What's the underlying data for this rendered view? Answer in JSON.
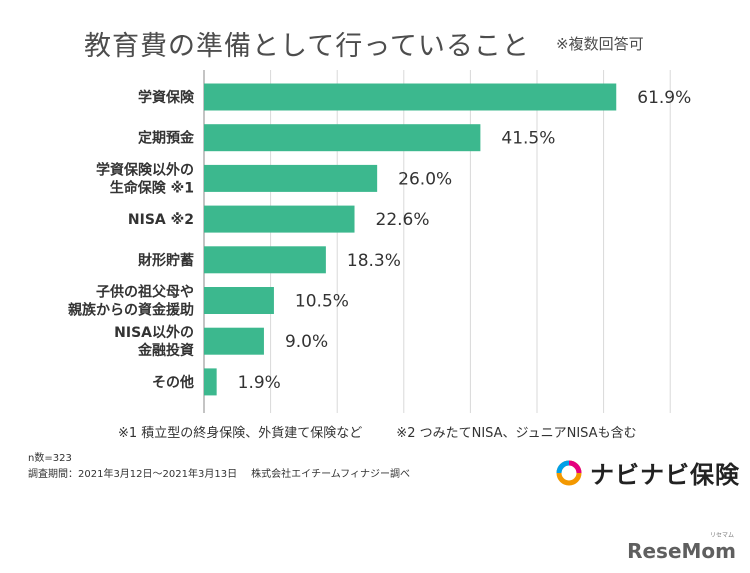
{
  "header": {
    "title": "教育費の準備として行っていること",
    "note": "※複数回答可"
  },
  "chart_data": {
    "type": "bar",
    "orientation": "horizontal",
    "title": "教育費の準備として行っていること",
    "categories": [
      [
        "学資保険"
      ],
      [
        "定期預金"
      ],
      [
        "学資保険以外の",
        "生命保険 ※1"
      ],
      [
        "NISA ※2"
      ],
      [
        "財形貯蓄"
      ],
      [
        "子供の祖父母や",
        "親族からの資金援助"
      ],
      [
        "NISA以外の",
        "金融投資"
      ],
      [
        "その他"
      ]
    ],
    "values": [
      61.9,
      41.5,
      26.0,
      22.6,
      18.3,
      10.5,
      9.0,
      1.9
    ],
    "value_labels": [
      "61.9%",
      "41.5%",
      "26.0%",
      "22.6%",
      "18.3%",
      "10.5%",
      "9.0%",
      "1.9%"
    ],
    "xlim": [
      0,
      70
    ],
    "x_gridlines": [
      10,
      20,
      30,
      40,
      50,
      60,
      70
    ],
    "bar_color": "#3cb88e",
    "grid_color": "#d9d9d9",
    "axis_color": "#888888"
  },
  "footnotes": {
    "note1": "※1 積立型の終身保険、外貨建て保険など",
    "note2": "※2 つみたてNISA、ジュニアNISAも含む"
  },
  "source": {
    "sample": "n数=323",
    "period": "調査期間：2021年3月12日〜2021年3月13日",
    "company": "株式会社エイチームフィナジー調べ"
  },
  "brand": {
    "name": "ナビナビ保険",
    "icon": "navinavi-logo-icon"
  },
  "watermark": {
    "text": "ReseMom",
    "ruby": "リセマム"
  }
}
